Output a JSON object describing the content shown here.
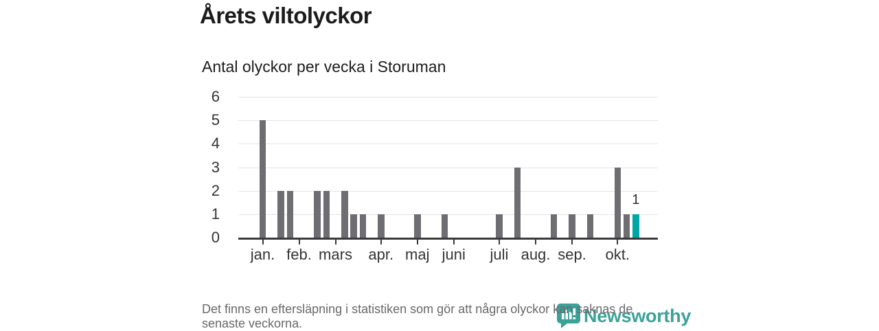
{
  "page": {
    "title": "Årets viltolyckor",
    "subtitle": "Antal olyckor per vecka i Storuman",
    "footnote_lines": [
      "Det finns en eftersläpning i statistiken som gör att några olyckor kan saknas de",
      "senaste veckorna."
    ],
    "brand": {
      "name": "Newsworthy",
      "icon": "newsworthy-bubble-barchart-icon",
      "color": "#3ba29a"
    }
  },
  "chart_data": {
    "type": "bar",
    "title": "Årets viltolyckor",
    "subtitle": "Antal olyckor per vecka i Storuman",
    "xlabel": "",
    "ylabel": "",
    "x_unit": "vecka",
    "weeks": [
      1,
      2,
      3,
      4,
      5,
      6,
      7,
      8,
      9,
      10,
      11,
      12,
      13,
      14,
      15,
      16,
      17,
      18,
      19,
      20,
      21,
      22,
      23,
      24,
      25,
      26,
      27,
      28,
      29,
      30,
      31,
      32,
      33,
      34,
      35,
      36,
      37,
      38,
      39,
      40,
      41,
      42,
      43,
      44
    ],
    "values": [
      5,
      0,
      2,
      2,
      0,
      0,
      2,
      2,
      0,
      2,
      1,
      1,
      0,
      1,
      0,
      0,
      0,
      1,
      0,
      0,
      1,
      0,
      0,
      0,
      0,
      0,
      1,
      0,
      3,
      0,
      0,
      0,
      1,
      0,
      1,
      0,
      1,
      0,
      0,
      3,
      1,
      1,
      0,
      0
    ],
    "ylim": [
      0,
      6
    ],
    "yticks": [
      0,
      1,
      2,
      3,
      4,
      5,
      6
    ],
    "grid": true,
    "legend": null,
    "bar_color": "#6d6d72",
    "axis_color": "#3a3a3a",
    "gridline_color": "#e4e4e4",
    "highlight": {
      "week": 42,
      "value": 1,
      "label": "1",
      "color": "#00a5a5"
    },
    "month_ticks": [
      {
        "label": "jan.",
        "week": 1
      },
      {
        "label": "feb.",
        "week": 5
      },
      {
        "label": "mars",
        "week": 9
      },
      {
        "label": "apr.",
        "week": 14
      },
      {
        "label": "maj",
        "week": 18
      },
      {
        "label": "juni",
        "week": 22
      },
      {
        "label": "juli",
        "week": 27
      },
      {
        "label": "aug.",
        "week": 31
      },
      {
        "label": "sep.",
        "week": 35
      },
      {
        "label": "okt.",
        "week": 40
      }
    ]
  }
}
